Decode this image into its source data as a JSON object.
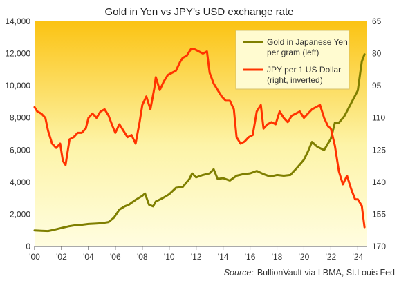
{
  "chart_data": {
    "type": "line",
    "title": "Gold in Yen vs JPY's USD exchange rate",
    "source_label": "Source:",
    "source_text": "BullionVault via LBMA, St.Louis Fed",
    "x_tick_labels": [
      "'00",
      "'02",
      "'04",
      "'06",
      "'08",
      "'10",
      "'12",
      "'14",
      "'16",
      "'18",
      "'20",
      "'22",
      "'24"
    ],
    "x_tick_years": [
      2000,
      2002,
      2004,
      2006,
      2008,
      2010,
      2012,
      2014,
      2016,
      2018,
      2020,
      2022,
      2024
    ],
    "xlim": [
      2000,
      2024.7
    ],
    "y_left_ticks": [
      0,
      2000,
      4000,
      6000,
      8000,
      10000,
      12000,
      14000
    ],
    "y_left_tick_labels": [
      "0",
      "2,000",
      "4,000",
      "6,000",
      "8,000",
      "10,000",
      "12,000",
      "14,000"
    ],
    "y_left_lim": [
      0,
      14000
    ],
    "y_right_ticks": [
      65,
      80,
      95,
      110,
      125,
      140,
      155,
      170
    ],
    "y_right_tick_labels": [
      "65",
      "80",
      "95",
      "110",
      "125",
      "140",
      "155",
      "170"
    ],
    "y_right_lim": [
      65,
      170
    ],
    "y_right_inverted": true,
    "grid": false,
    "legend_position": "top-right",
    "background_gradient": [
      "#fbc313",
      "#fdf4a8",
      "#fffde0"
    ],
    "series": [
      {
        "name": "Gold in Japanese Yen per gram (left)",
        "name_lines": [
          "Gold in Japanese Yen",
          "per gram (left)"
        ],
        "axis": "left",
        "color": "#7f7f00",
        "x": [
          2000.0,
          2000.5,
          2001.0,
          2001.5,
          2002.0,
          2002.5,
          2003.0,
          2003.5,
          2004.0,
          2004.5,
          2005.0,
          2005.5,
          2005.9,
          2006.3,
          2006.7,
          2007.0,
          2007.5,
          2008.0,
          2008.2,
          2008.5,
          2008.8,
          2009.0,
          2009.5,
          2010.0,
          2010.5,
          2011.0,
          2011.5,
          2011.7,
          2012.0,
          2012.5,
          2013.0,
          2013.3,
          2013.6,
          2014.0,
          2014.5,
          2015.0,
          2015.5,
          2016.0,
          2016.5,
          2017.0,
          2017.5,
          2018.0,
          2018.5,
          2019.0,
          2019.5,
          2020.0,
          2020.3,
          2020.6,
          2021.0,
          2021.5,
          2022.0,
          2022.3,
          2022.6,
          2023.0,
          2023.5,
          2024.0,
          2024.3,
          2024.5
        ],
        "values": [
          1000,
          980,
          960,
          1050,
          1150,
          1250,
          1320,
          1350,
          1400,
          1420,
          1450,
          1520,
          1800,
          2300,
          2500,
          2600,
          2900,
          3150,
          3300,
          2600,
          2500,
          2800,
          3000,
          3250,
          3650,
          3700,
          4200,
          4550,
          4300,
          4450,
          4550,
          4800,
          4200,
          4250,
          4100,
          4400,
          4500,
          4550,
          4700,
          4500,
          4350,
          4450,
          4400,
          4450,
          4900,
          5400,
          5900,
          6500,
          6200,
          6000,
          6700,
          7700,
          7700,
          8100,
          8900,
          9700,
          11500,
          11950
        ]
      },
      {
        "name": "JPY per 1 US Dollar (right, inverted)",
        "name_lines": [
          "JPY per 1 US Dollar",
          "(right, inverted)"
        ],
        "axis": "right",
        "color": "#ff3300",
        "x": [
          2000.0,
          2000.2,
          2000.5,
          2000.8,
          2001.0,
          2001.3,
          2001.6,
          2001.9,
          2002.1,
          2002.3,
          2002.6,
          2002.9,
          2003.2,
          2003.5,
          2003.8,
          2004.0,
          2004.3,
          2004.6,
          2004.9,
          2005.2,
          2005.5,
          2005.8,
          2006.0,
          2006.3,
          2006.6,
          2006.9,
          2007.2,
          2007.5,
          2007.8,
          2008.0,
          2008.3,
          2008.6,
          2008.9,
          2009.0,
          2009.3,
          2009.6,
          2009.9,
          2010.2,
          2010.5,
          2010.8,
          2011.0,
          2011.3,
          2011.6,
          2011.9,
          2012.2,
          2012.5,
          2012.8,
          2013.0,
          2013.3,
          2013.6,
          2013.9,
          2014.2,
          2014.5,
          2014.8,
          2015.0,
          2015.3,
          2015.6,
          2015.9,
          2016.2,
          2016.5,
          2016.8,
          2017.0,
          2017.3,
          2017.6,
          2017.9,
          2018.2,
          2018.5,
          2018.8,
          2019.1,
          2019.4,
          2019.7,
          2020.0,
          2020.3,
          2020.6,
          2020.9,
          2021.2,
          2021.5,
          2021.8,
          2022.0,
          2022.3,
          2022.6,
          2022.9,
          2023.2,
          2023.5,
          2023.8,
          2024.0,
          2024.3,
          2024.5
        ],
        "values": [
          105,
          107,
          108,
          110,
          116,
          122,
          124,
          122,
          130,
          132,
          120,
          119,
          117,
          117,
          115,
          110,
          108,
          110,
          107,
          106,
          109,
          114,
          117,
          113,
          116,
          119,
          118,
          122,
          112,
          104,
          100,
          106,
          96,
          91,
          97,
          93,
          90,
          89,
          88,
          84,
          82,
          81,
          78,
          78,
          79,
          80,
          79,
          89,
          94,
          97,
          100,
          102,
          102,
          106,
          119,
          122,
          121,
          119,
          118,
          107,
          104,
          115,
          113,
          112,
          113,
          107,
          110,
          112,
          109,
          108,
          107,
          110,
          108,
          106,
          105,
          104,
          110,
          114,
          115,
          123,
          135,
          141,
          137,
          143,
          148,
          148,
          151,
          161
        ]
      }
    ]
  }
}
